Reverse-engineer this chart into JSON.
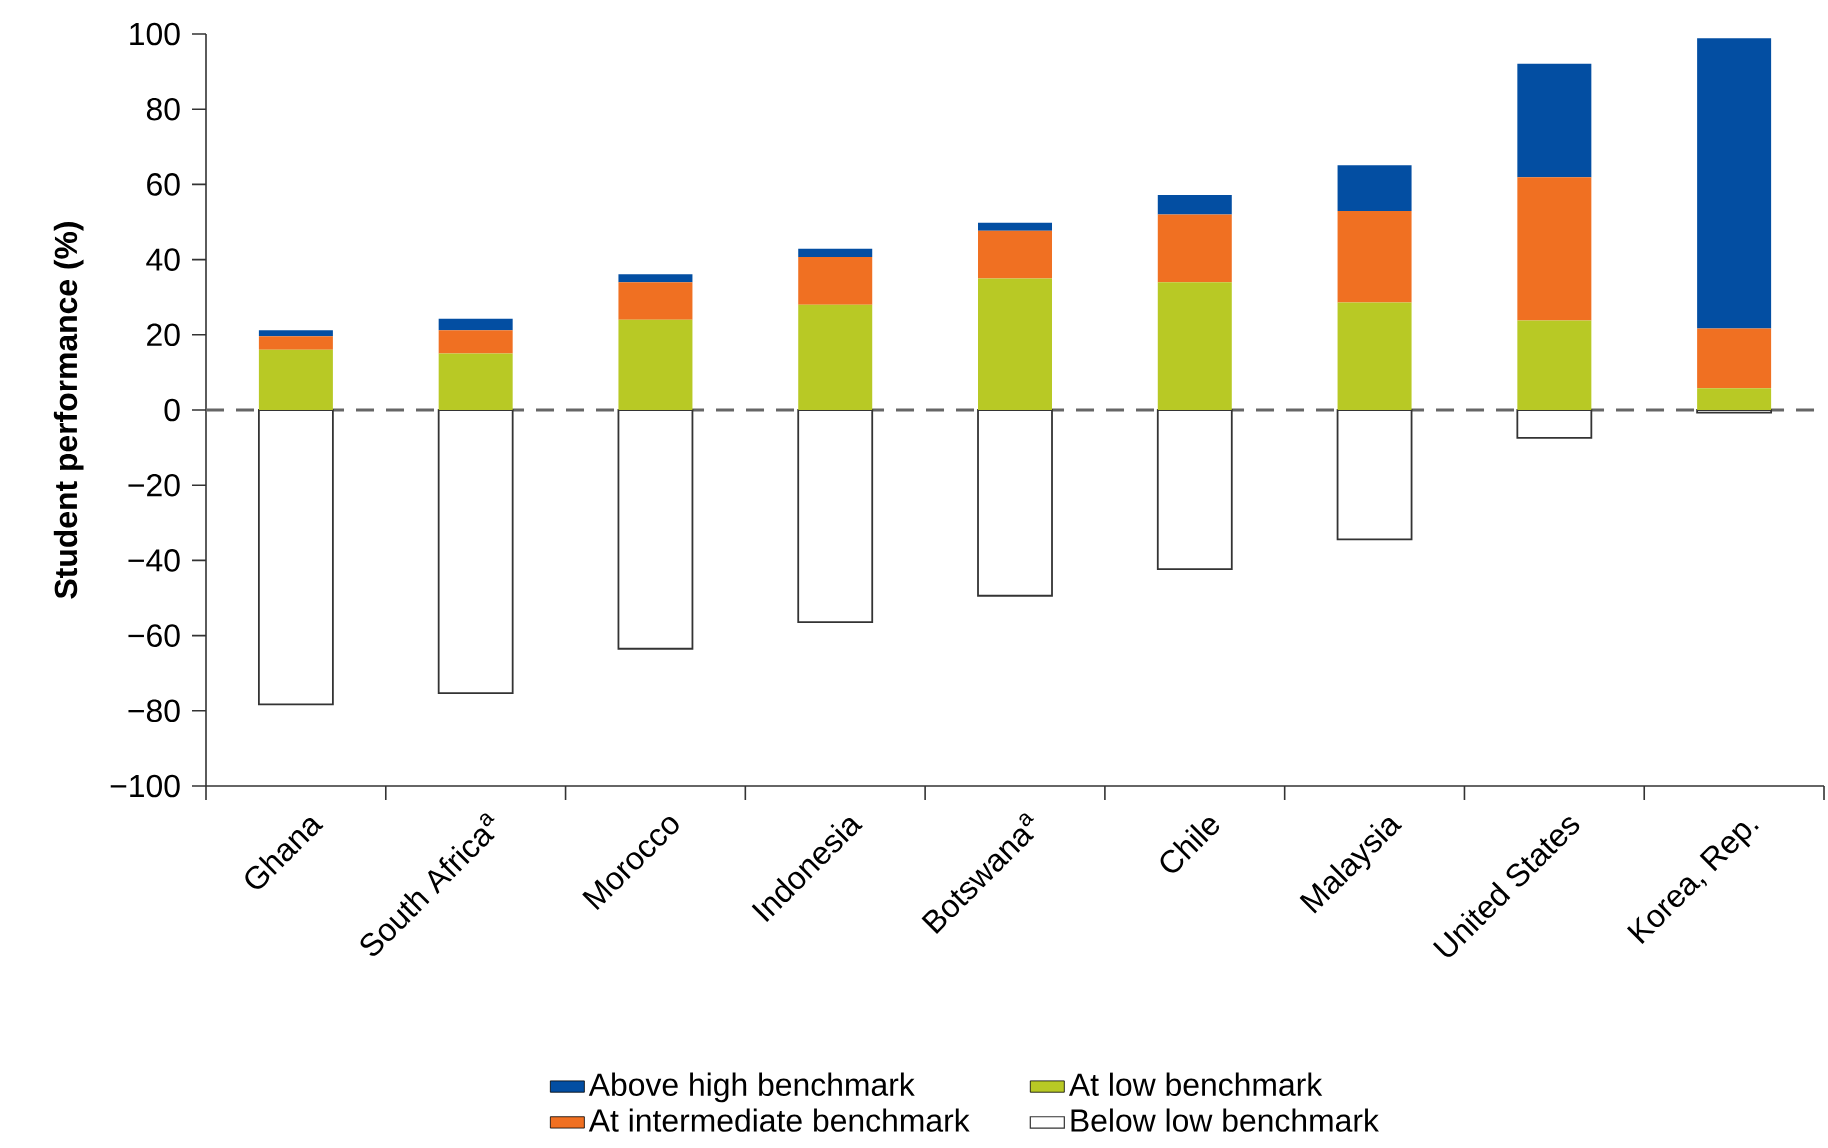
{
  "chart_data": {
    "type": "bar",
    "stacked": true,
    "ylabel": "Student performance (%)",
    "categories": [
      "Ghana",
      "South Africa$^{a}$",
      "Morocco",
      "Indonesia",
      "Botswana$^{a}$",
      "Chile",
      "Malaysia",
      "United States",
      "Korea, Rep."
    ],
    "series": [
      {
        "name": "At low benchmark",
        "color": "#b8c925",
        "values": [
          16,
          15,
          24,
          28,
          35,
          34,
          28.6,
          23.8,
          5.8
        ]
      },
      {
        "name": "At intermediate benchmark",
        "color": "#f07022",
        "values": [
          3.6,
          6.2,
          10,
          12.7,
          12.7,
          18,
          24.3,
          38.1,
          15.9
        ]
      },
      {
        "name": "Above high benchmark",
        "color": "#034ea2",
        "values": [
          1.6,
          3.1,
          2.1,
          2.2,
          2.1,
          5.2,
          12.2,
          30.2,
          77.2
        ]
      },
      {
        "name": "Below low benchmark",
        "color": "#ffffff",
        "values": [
          -78.3,
          -75.3,
          -63.5,
          -56.4,
          -49.4,
          -42.3,
          -34.4,
          -7.4,
          -0.7
        ]
      }
    ],
    "ylim": [
      -100,
      100
    ],
    "yticks": [
      {
        "value": -100,
        "label": "−100"
      },
      {
        "value": -80,
        "label": "−80"
      },
      {
        "value": -60,
        "label": "−60"
      },
      {
        "value": -40,
        "label": "−40"
      },
      {
        "value": -20,
        "label": "−20"
      },
      0,
      20,
      40,
      60,
      80,
      100
    ],
    "ref_lines": [
      {
        "axis": "y",
        "value": 0,
        "color": "#666666",
        "line_style": "dashed"
      }
    ],
    "legend": "bottom"
  }
}
